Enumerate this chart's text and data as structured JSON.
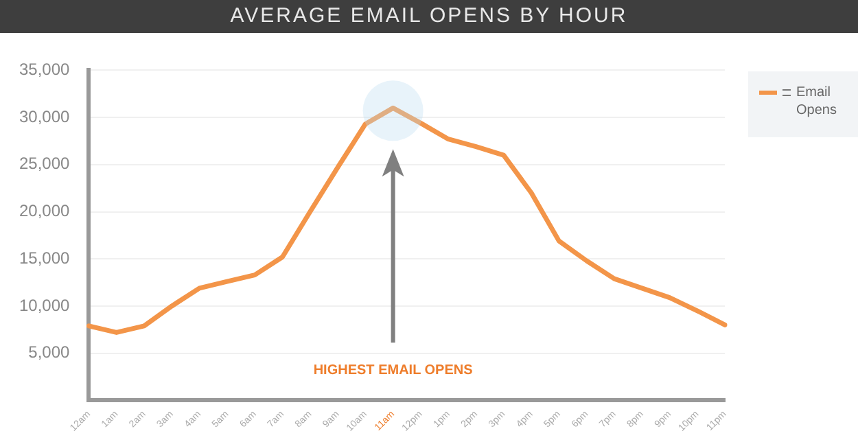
{
  "chart_data": {
    "type": "line",
    "title": "AVERAGE EMAIL OPENS BY HOUR",
    "categories": [
      "12am",
      "1am",
      "2am",
      "3am",
      "4am",
      "5am",
      "6am",
      "7am",
      "8am",
      "9am",
      "10am",
      "11am",
      "12pm",
      "1pm",
      "2pm",
      "3pm",
      "4pm",
      "5pm",
      "6pm",
      "7pm",
      "8pm",
      "9pm",
      "10pm",
      "11pm"
    ],
    "series": [
      {
        "name": "Email Opens",
        "color": "#f39549",
        "values": [
          7900,
          7200,
          7900,
          10000,
          11900,
          12600,
          13300,
          15200,
          20000,
          24700,
          29300,
          31000,
          29400,
          27700,
          26900,
          26000,
          22000,
          16900,
          14800,
          12900,
          11900,
          10900,
          9500,
          8000
        ]
      }
    ],
    "ylim": [
      0,
      35000
    ],
    "yticks": [
      {
        "value": 0,
        "label": null
      },
      {
        "value": 5000,
        "label": "5,000"
      },
      {
        "value": 10000,
        "label": "10,000"
      },
      {
        "value": 15000,
        "label": "15,000"
      },
      {
        "value": 20000,
        "label": "20,000"
      },
      {
        "value": 25000,
        "label": "25,000"
      },
      {
        "value": 30000,
        "label": "30,000"
      },
      {
        "value": 35000,
        "label": "35,000"
      }
    ],
    "grid": "y",
    "legend": "top right",
    "marker": "none",
    "line_style": "solid",
    "annotations": [
      "HIGHEST EMAIL OPENS"
    ]
  }
}
